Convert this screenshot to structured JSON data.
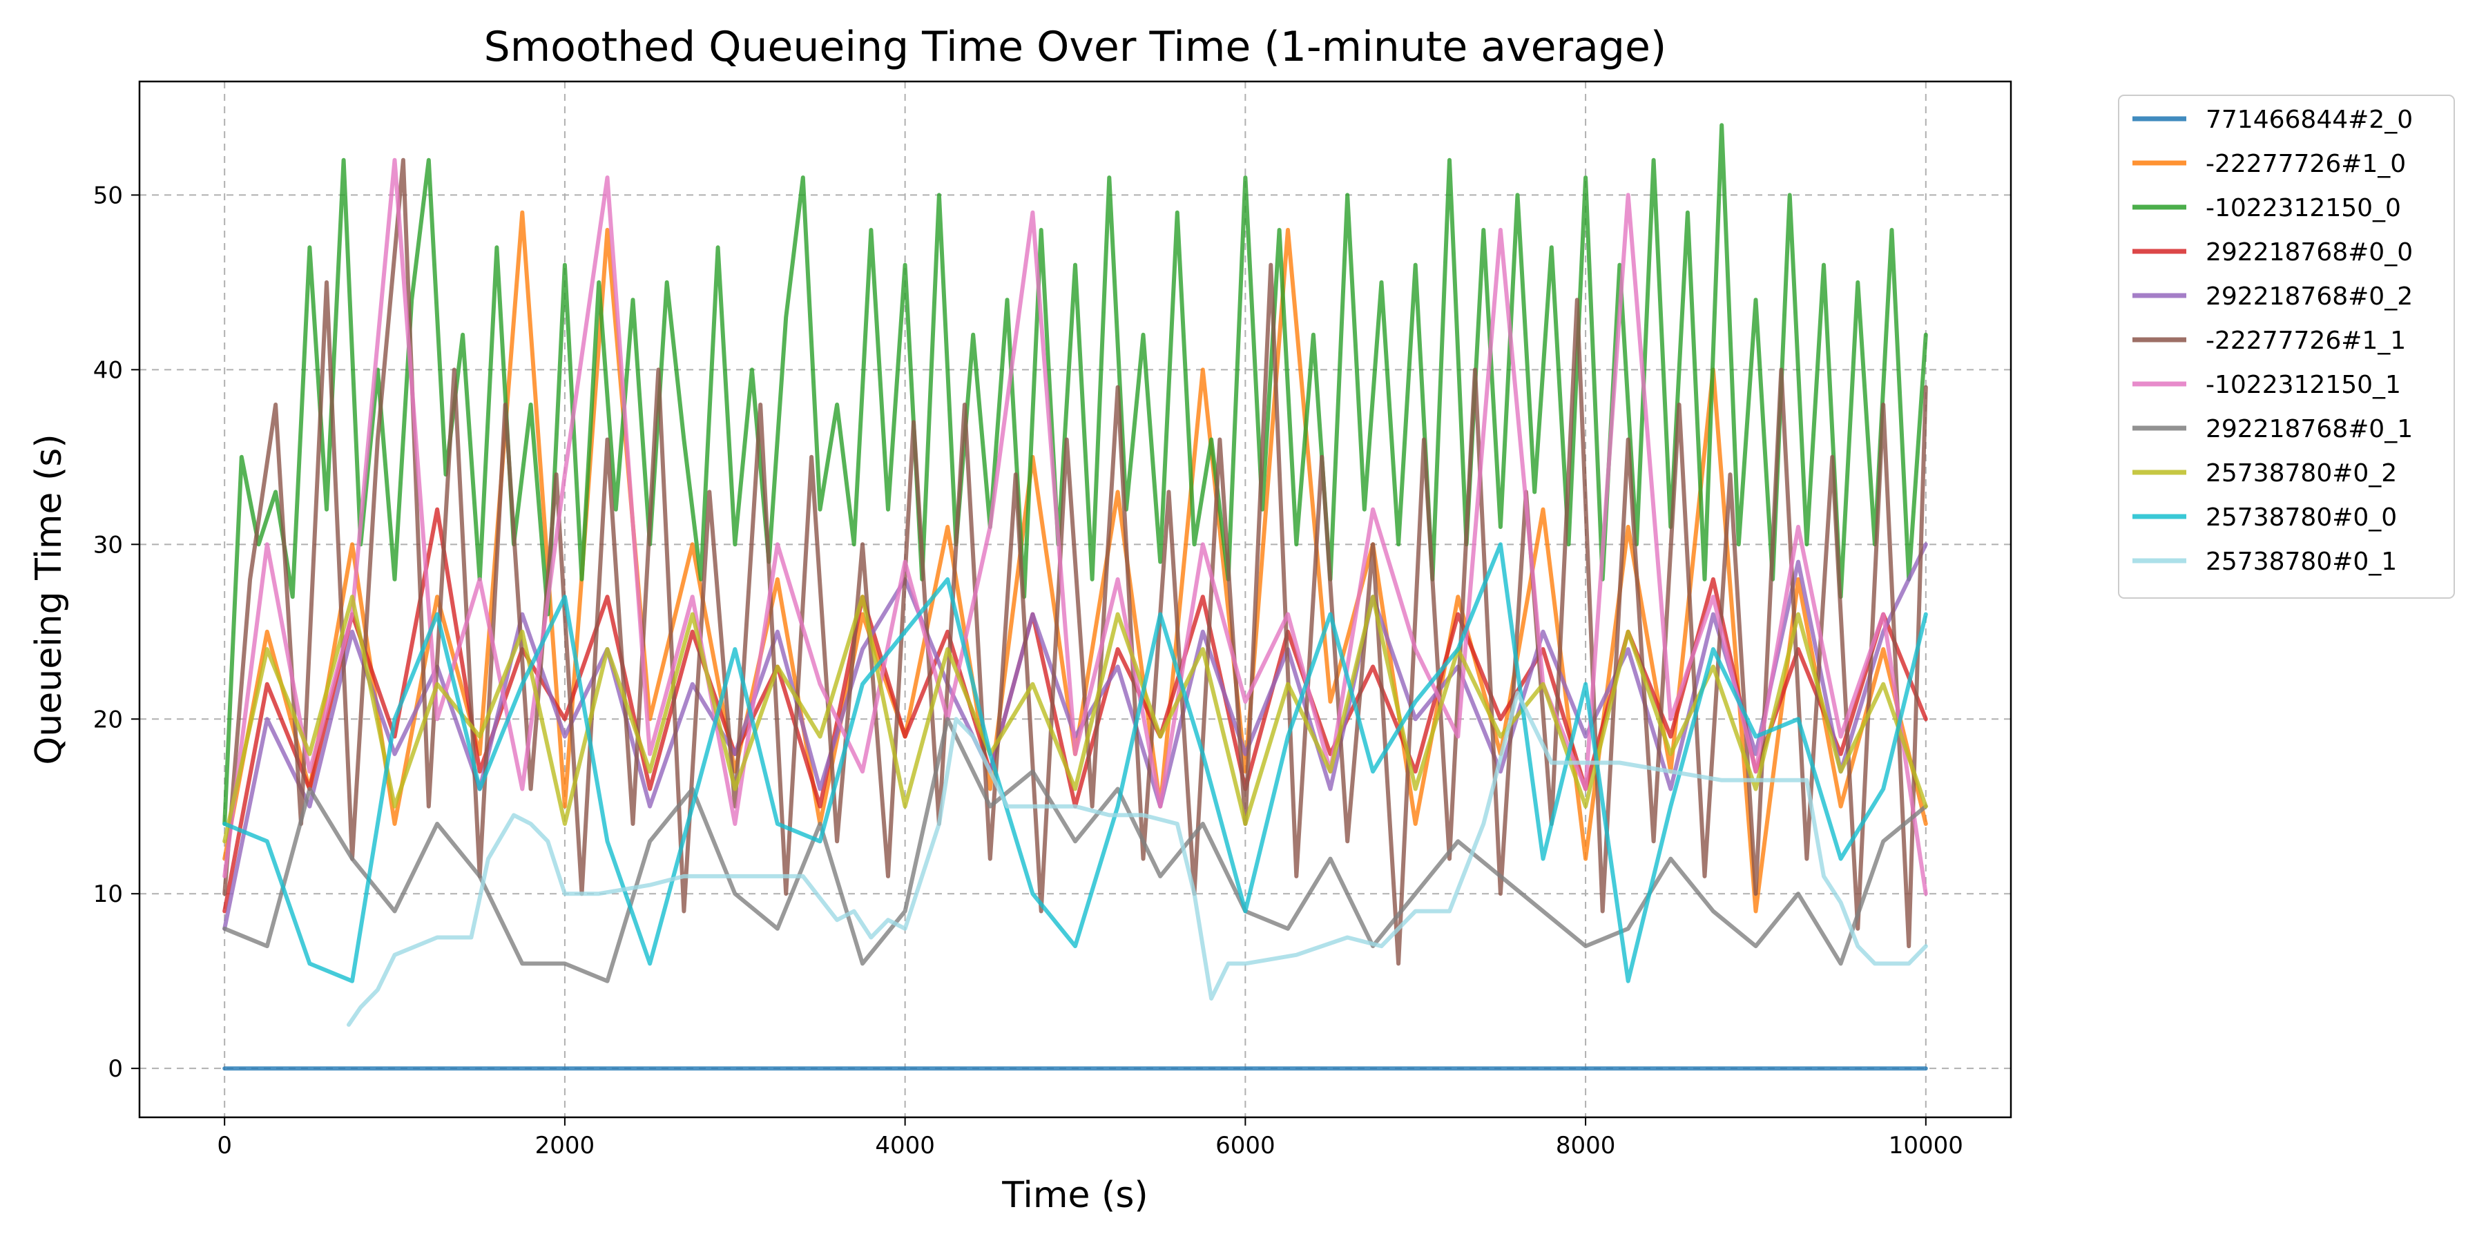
{
  "chart_data": {
    "type": "line",
    "title": "Smoothed Queueing Time Over Time (1-minute average)",
    "xlabel": "Time (s)",
    "ylabel": "Queueing Time (s)",
    "xlim": [
      -500,
      10500
    ],
    "ylim": [
      -2.8,
      56.5
    ],
    "xticks": [
      0,
      2000,
      4000,
      6000,
      8000,
      10000
    ],
    "yticks": [
      0,
      10,
      20,
      30,
      40,
      50
    ],
    "grid": true,
    "legend_position": "outside-right",
    "series": [
      {
        "name": "771466844#2_0",
        "color": "#1f77b4",
        "x": [
          0,
          10000
        ],
        "values": [
          0,
          0
        ]
      },
      {
        "name": "-22277726#1_0",
        "color": "#ff7f0e",
        "x": [
          0,
          250,
          500,
          750,
          1000,
          1250,
          1500,
          1750,
          2000,
          2250,
          2500,
          2750,
          3000,
          3250,
          3500,
          3750,
          4000,
          4250,
          4500,
          4750,
          5000,
          5250,
          5500,
          5750,
          6000,
          6250,
          6500,
          6750,
          7000,
          7250,
          7500,
          7750,
          8000,
          8250,
          8500,
          8750,
          9000,
          9250,
          9500,
          9750,
          10000
        ],
        "values": [
          12,
          25,
          16,
          30,
          14,
          27,
          18,
          49,
          15,
          48,
          20,
          30,
          17,
          28,
          14,
          26,
          19,
          31,
          16,
          35,
          18,
          33,
          15,
          40,
          17,
          48,
          21,
          30,
          14,
          27,
          18,
          32,
          12,
          31,
          17,
          40,
          9,
          28,
          15,
          24,
          14
        ]
      },
      {
        "name": "-1022312150_0",
        "color": "#2ca02c",
        "x": [
          0,
          100,
          200,
          300,
          400,
          500,
          600,
          700,
          800,
          900,
          1000,
          1100,
          1200,
          1300,
          1400,
          1500,
          1600,
          1700,
          1800,
          1900,
          2000,
          2100,
          2200,
          2300,
          2400,
          2500,
          2600,
          2700,
          2800,
          2900,
          3000,
          3100,
          3200,
          3300,
          3400,
          3500,
          3600,
          3700,
          3800,
          3900,
          4000,
          4100,
          4200,
          4300,
          4400,
          4500,
          4600,
          4700,
          4800,
          4900,
          5000,
          5100,
          5200,
          5300,
          5400,
          5500,
          5600,
          5700,
          5800,
          5900,
          6000,
          6100,
          6200,
          6300,
          6400,
          6500,
          6600,
          6700,
          6800,
          6900,
          7000,
          7100,
          7200,
          7300,
          7400,
          7500,
          7600,
          7700,
          7800,
          7900,
          8000,
          8100,
          8200,
          8300,
          8400,
          8500,
          8600,
          8700,
          8800,
          8900,
          9000,
          9100,
          9200,
          9300,
          9400,
          9500,
          9600,
          9700,
          9800,
          9900,
          10000
        ],
        "values": [
          14,
          35,
          30,
          33,
          27,
          47,
          32,
          52,
          30,
          40,
          28,
          44,
          52,
          34,
          42,
          28,
          47,
          30,
          38,
          26,
          46,
          28,
          45,
          32,
          44,
          30,
          45,
          36,
          28,
          47,
          30,
          40,
          29,
          43,
          51,
          32,
          38,
          30,
          48,
          32,
          46,
          28,
          50,
          30,
          42,
          31,
          44,
          27,
          48,
          30,
          46,
          28,
          51,
          32,
          42,
          29,
          49,
          30,
          36,
          28,
          51,
          32,
          48,
          30,
          42,
          28,
          50,
          32,
          45,
          30,
          46,
          28,
          52,
          30,
          48,
          31,
          50,
          33,
          47,
          30,
          51,
          28,
          46,
          30,
          52,
          31,
          49,
          28,
          54,
          30,
          44,
          28,
          50,
          30,
          46,
          27,
          45,
          30,
          48,
          28,
          42
        ]
      },
      {
        "name": "292218768#0_0",
        "color": "#d62728",
        "x": [
          0,
          250,
          500,
          750,
          1000,
          1250,
          1500,
          1750,
          2000,
          2250,
          2500,
          2750,
          3000,
          3250,
          3500,
          3750,
          4000,
          4250,
          4500,
          4750,
          5000,
          5250,
          5500,
          5750,
          6000,
          6250,
          6500,
          6750,
          7000,
          7250,
          7500,
          7750,
          8000,
          8250,
          8500,
          8750,
          9000,
          9250,
          9500,
          9750,
          10000
        ],
        "values": [
          9,
          22,
          16,
          26,
          19,
          32,
          17,
          24,
          20,
          27,
          16,
          25,
          18,
          23,
          15,
          27,
          19,
          25,
          17,
          26,
          15,
          24,
          19,
          27,
          16,
          25,
          18,
          23,
          17,
          26,
          20,
          24,
          16,
          25,
          19,
          28,
          17,
          24,
          18,
          26,
          20
        ]
      },
      {
        "name": "292218768#0_2",
        "color": "#9467bd",
        "x": [
          0,
          250,
          500,
          750,
          1000,
          1250,
          1500,
          1750,
          2000,
          2250,
          2500,
          2750,
          3000,
          3250,
          3500,
          3750,
          4000,
          4250,
          4500,
          4750,
          5000,
          5250,
          5500,
          5750,
          6000,
          6250,
          6500,
          6750,
          7000,
          7250,
          7500,
          7750,
          8000,
          8250,
          8500,
          8750,
          9000,
          9250,
          9500,
          9750,
          10000
        ],
        "values": [
          8,
          20,
          15,
          25,
          18,
          23,
          16,
          26,
          19,
          24,
          15,
          22,
          18,
          25,
          16,
          24,
          28,
          22,
          17,
          26,
          19,
          23,
          15,
          25,
          18,
          24,
          16,
          27,
          20,
          23,
          17,
          25,
          19,
          24,
          16,
          26,
          18,
          29,
          17,
          25,
          30
        ]
      },
      {
        "name": "-22277726#1_1",
        "color": "#8c564b",
        "x": [
          0,
          150,
          300,
          450,
          600,
          750,
          900,
          1050,
          1200,
          1350,
          1500,
          1650,
          1800,
          1950,
          2100,
          2250,
          2400,
          2550,
          2700,
          2850,
          3000,
          3150,
          3300,
          3450,
          3600,
          3750,
          3900,
          4050,
          4200,
          4350,
          4500,
          4650,
          4800,
          4950,
          5100,
          5250,
          5400,
          5550,
          5700,
          5850,
          6000,
          6150,
          6300,
          6450,
          6600,
          6750,
          6900,
          7050,
          7200,
          7350,
          7500,
          7650,
          7800,
          7950,
          8100,
          8250,
          8400,
          8550,
          8700,
          8850,
          9000,
          9150,
          9300,
          9450,
          9600,
          9750,
          9900,
          10000
        ],
        "values": [
          10,
          28,
          38,
          14,
          45,
          12,
          36,
          52,
          15,
          40,
          11,
          38,
          16,
          34,
          10,
          36,
          14,
          40,
          9,
          33,
          15,
          38,
          10,
          35,
          13,
          30,
          11,
          37,
          14,
          38,
          12,
          34,
          9,
          36,
          15,
          39,
          12,
          33,
          10,
          36,
          14,
          46,
          11,
          35,
          13,
          30,
          6,
          36,
          12,
          40,
          10,
          33,
          14,
          44,
          9,
          36,
          13,
          38,
          11,
          34,
          10,
          40,
          12,
          35,
          8,
          38,
          7,
          39
        ]
      },
      {
        "name": "-1022312150_1",
        "color": "#e377c2",
        "x": [
          0,
          250,
          500,
          750,
          1000,
          1250,
          1500,
          1750,
          2000,
          2250,
          2500,
          2750,
          3000,
          3250,
          3500,
          3750,
          4000,
          4250,
          4500,
          4750,
          5000,
          5250,
          5500,
          5750,
          6000,
          6250,
          6500,
          6750,
          7000,
          7250,
          7500,
          7750,
          8000,
          8250,
          8500,
          8750,
          9000,
          9250,
          9500,
          9750,
          10000
        ],
        "values": [
          11,
          30,
          17,
          26,
          52,
          20,
          28,
          16,
          34,
          51,
          18,
          27,
          14,
          30,
          22,
          17,
          29,
          20,
          31,
          49,
          18,
          28,
          15,
          30,
          21,
          26,
          17,
          32,
          24,
          19,
          48,
          22,
          16,
          50,
          20,
          27,
          17,
          31,
          19,
          26,
          10
        ]
      },
      {
        "name": "292218768#0_1",
        "color": "#7f7f7f",
        "x": [
          0,
          250,
          500,
          750,
          1000,
          1250,
          1500,
          1750,
          2000,
          2250,
          2500,
          2750,
          3000,
          3250,
          3500,
          3750,
          4000,
          4250,
          4500,
          4750,
          5000,
          5250,
          5500,
          5750,
          6000,
          6250,
          6500,
          6750,
          7000,
          7250,
          7500,
          7750,
          8000,
          8250,
          8500,
          8750,
          9000,
          9250,
          9500,
          9750,
          10000
        ],
        "values": [
          8,
          7,
          16,
          12,
          9,
          14,
          11,
          6,
          6,
          5,
          13,
          16,
          10,
          8,
          14,
          6,
          9,
          20,
          15,
          17,
          13,
          16,
          11,
          14,
          9,
          8,
          12,
          7,
          10,
          13,
          11,
          9,
          7,
          8,
          12,
          9,
          7,
          10,
          6,
          13,
          15
        ]
      },
      {
        "name": "25738780#0_2",
        "color": "#bcbd22",
        "x": [
          0,
          250,
          500,
          750,
          1000,
          1250,
          1500,
          1750,
          2000,
          2250,
          2500,
          2750,
          3000,
          3250,
          3500,
          3750,
          4000,
          4250,
          4500,
          4750,
          5000,
          5250,
          5500,
          5750,
          6000,
          6250,
          6500,
          6750,
          7000,
          7250,
          7500,
          7750,
          8000,
          8250,
          8500,
          8750,
          9000,
          9250,
          9500,
          9750,
          10000
        ],
        "values": [
          13,
          24,
          18,
          27,
          15,
          22,
          19,
          25,
          14,
          24,
          17,
          26,
          16,
          23,
          19,
          27,
          15,
          24,
          18,
          22,
          16,
          26,
          19,
          24,
          14,
          22,
          17,
          27,
          16,
          24,
          19,
          22,
          15,
          25,
          18,
          23,
          16,
          26,
          17,
          22,
          15
        ]
      },
      {
        "name": "25738780#0_0",
        "color": "#17becf",
        "x": [
          0,
          250,
          500,
          750,
          1000,
          1250,
          1500,
          1750,
          2000,
          2250,
          2500,
          2750,
          3000,
          3250,
          3500,
          3750,
          4000,
          4250,
          4500,
          4750,
          5000,
          5250,
          5500,
          5750,
          6000,
          6250,
          6500,
          6750,
          7000,
          7250,
          7500,
          7750,
          8000,
          8250,
          8500,
          8750,
          9000,
          9250,
          9500,
          9750,
          10000
        ],
        "values": [
          14,
          13,
          6,
          5,
          20,
          26,
          16,
          22,
          27,
          13,
          6,
          15,
          24,
          14,
          13,
          22,
          25,
          28,
          18,
          10,
          7,
          15,
          26,
          18,
          9,
          19,
          26,
          17,
          21,
          24,
          30,
          12,
          22,
          5,
          15,
          24,
          19,
          20,
          12,
          16,
          26
        ]
      },
      {
        "name": "25738780#0_1",
        "color": "#9edae5",
        "x": [
          730,
          800,
          900,
          1000,
          1250,
          1450,
          1550,
          1700,
          1800,
          1900,
          2000,
          2200,
          2500,
          2700,
          2900,
          3100,
          3400,
          3600,
          3700,
          3800,
          3900,
          4000,
          4200,
          4300,
          4400,
          4600,
          4800,
          5000,
          5200,
          5400,
          5600,
          5700,
          5800,
          5900,
          6000,
          6300,
          6600,
          6800,
          7000,
          7200,
          7400,
          7600,
          7800,
          8000,
          8200,
          8500,
          8800,
          9100,
          9300,
          9400,
          9500,
          9600,
          9700,
          9800,
          9900,
          10000
        ],
        "values": [
          2.5,
          3.5,
          4.5,
          6.5,
          7.5,
          7.5,
          12,
          14.5,
          14,
          13,
          10,
          10,
          10.5,
          11,
          11,
          11,
          11,
          8.5,
          9,
          7.5,
          8.5,
          8,
          14,
          20,
          19,
          15,
          15,
          15,
          14.5,
          14.5,
          14,
          10,
          4,
          6,
          6,
          6.5,
          7.5,
          7,
          9,
          9,
          14,
          21.5,
          17.5,
          17.5,
          17.5,
          17,
          16.5,
          16.5,
          16.5,
          11,
          9.5,
          7,
          6,
          6,
          6,
          7
        ]
      }
    ]
  }
}
